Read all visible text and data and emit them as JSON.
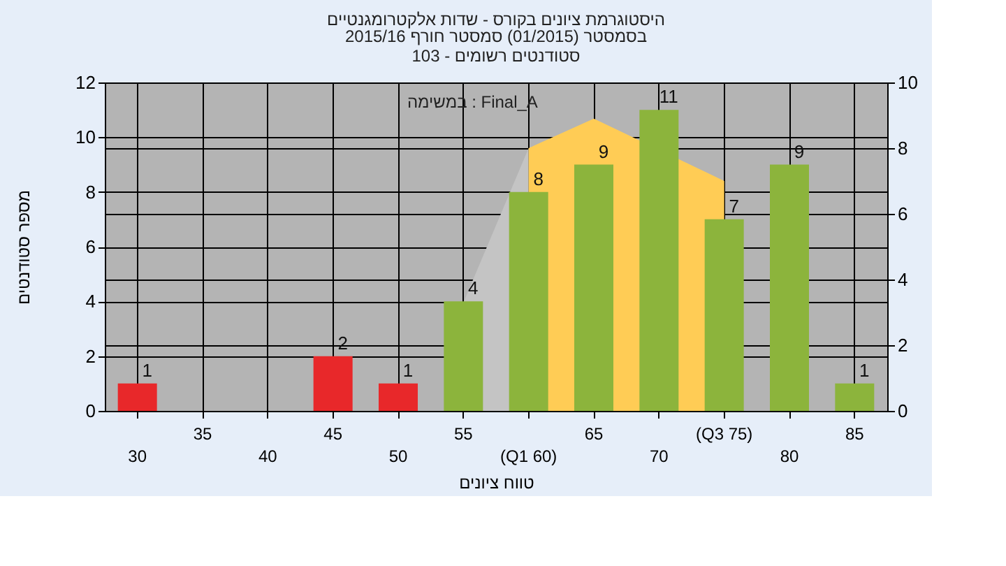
{
  "chart_data": {
    "type": "bar",
    "title": "היסטוגרמת ציונים בקורס - שדות אלקטרומגנטיים",
    "subtitle": "בסמסטר  (01/2015)  סמסטר חורף 2015/16\nסטודנטים רשומים - 103",
    "xlabel": "טווח ציונים",
    "ylabel": "מספר סטודנטים",
    "categories": [
      "30",
      "35",
      "40",
      "45",
      "50",
      "55",
      "(Q1 60)",
      "65",
      "70",
      "(Q3 75)",
      "80",
      "85"
    ],
    "series": [
      {
        "type": "area",
        "axis": "y2",
        "color": "#c4c4c4",
        "x": [
          "55",
          "(Q1 60)"
        ],
        "values": [
          3.3,
          8
        ]
      },
      {
        "type": "area",
        "axis": "y2",
        "color": "#ffcc55",
        "x": [
          "(Q1 60)",
          "65",
          "(Q3 75)"
        ],
        "values": [
          8,
          8.9,
          7
        ]
      },
      {
        "values": [
          1,
          0,
          0,
          2,
          1,
          4,
          8,
          9,
          11,
          7,
          9,
          1
        ],
        "colors": [
          "#e8282a",
          "#e8282a",
          "#e8282a",
          "#e8282a",
          "#e8282a",
          "#8cb43c",
          "#8cb43c",
          "#8cb43c",
          "#8cb43c",
          "#8cb43c",
          "#8cb43c",
          "#8cb43c"
        ],
        "value_labels": [
          "1",
          null,
          null,
          "2",
          "1",
          "4",
          "8",
          "9",
          "11",
          "7",
          "9",
          "1"
        ]
      }
    ],
    "ylim": [
      0,
      12
    ],
    "yticks": [
      0,
      2,
      4,
      6,
      8,
      10,
      12
    ],
    "y2lim": [
      0,
      10
    ],
    "y2ticks": [
      0,
      2,
      4,
      6,
      8,
      10
    ],
    "annotations": [
      "במשימה : Final_A"
    ],
    "grid": true
  }
}
